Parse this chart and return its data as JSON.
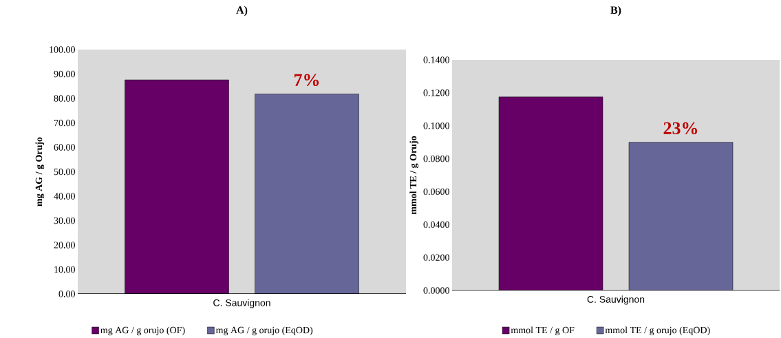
{
  "chart_data": [
    {
      "type": "bar",
      "title": "A)",
      "ylabel": "mg AG / g Orujo",
      "categories": [
        "C. Sauvignon"
      ],
      "series": [
        {
          "name": "mg AG / g orujo (OF)",
          "color": "#660066",
          "values": [
            87.6
          ]
        },
        {
          "name": "mg AG / g orujo (EqOD)",
          "color": "#666699",
          "values": [
            81.8
          ]
        }
      ],
      "ylim": [
        0,
        100
      ],
      "yticks": [
        {
          "value": 0,
          "label": "0.00"
        },
        {
          "value": 10,
          "label": "10.00"
        },
        {
          "value": 20,
          "label": "20.00"
        },
        {
          "value": 30,
          "label": "30.00"
        },
        {
          "value": 40,
          "label": "40.00"
        },
        {
          "value": 50,
          "label": "50.00"
        },
        {
          "value": 60,
          "label": "60.00"
        },
        {
          "value": 70,
          "label": "70.00"
        },
        {
          "value": 80,
          "label": "80.00"
        },
        {
          "value": 90,
          "label": "90.00"
        },
        {
          "value": 100,
          "label": "100.00"
        }
      ],
      "annotations": [
        "7%"
      ],
      "legend": "bottom",
      "grid": false
    },
    {
      "type": "bar",
      "title": "B)",
      "ylabel": "mmol TE / g Orujo",
      "categories": [
        "C. Sauvignon"
      ],
      "series": [
        {
          "name": "mmol TE / g OF",
          "color": "#660066",
          "values": [
            0.1175
          ]
        },
        {
          "name": "mmol TE / g orujo (EqOD)",
          "color": "#666699",
          "values": [
            0.09
          ]
        }
      ],
      "ylim": [
        0,
        0.14
      ],
      "yticks": [
        {
          "value": 0,
          "label": "0.0000"
        },
        {
          "value": 0.02,
          "label": "0.0200"
        },
        {
          "value": 0.04,
          "label": "0.0400"
        },
        {
          "value": 0.06,
          "label": "0.0600"
        },
        {
          "value": 0.08,
          "label": "0.0800"
        },
        {
          "value": 0.1,
          "label": "0.1000"
        },
        {
          "value": 0.12,
          "label": "0.1200"
        },
        {
          "value": 0.14,
          "label": "0.1400"
        }
      ],
      "annotations": [
        "23%"
      ],
      "legend": "bottom",
      "grid": false
    }
  ]
}
